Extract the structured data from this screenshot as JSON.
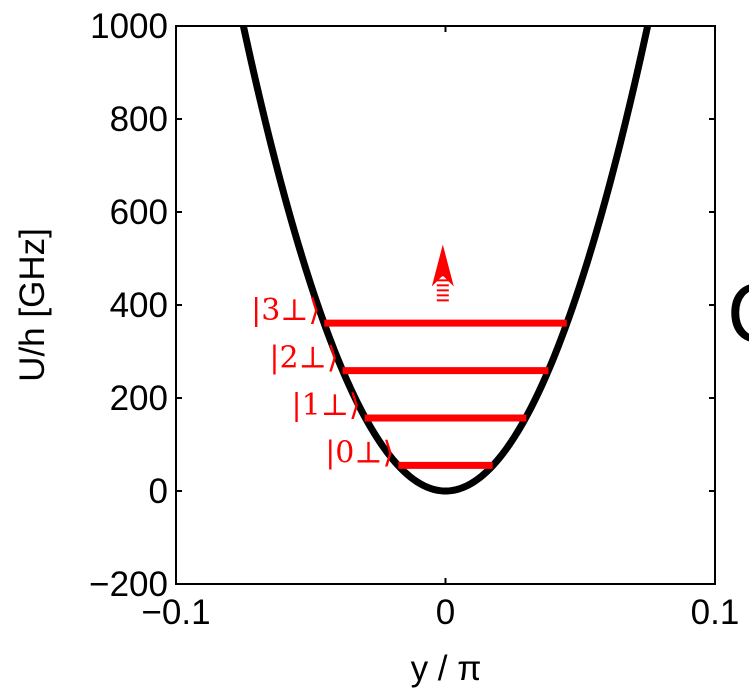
{
  "chart_data": {
    "type": "line",
    "xlabel": "y / π",
    "ylabel": "U/h [GHz]",
    "xlim": [
      -0.1,
      0.1
    ],
    "ylim": [
      -200,
      1000
    ],
    "x_ticks": [
      {
        "value": -0.1,
        "label": "−0.1"
      },
      {
        "value": 0,
        "label": "0"
      },
      {
        "value": 0.1,
        "label": "0.1"
      }
    ],
    "y_ticks": [
      {
        "value": -200,
        "label": "−200"
      },
      {
        "value": 0,
        "label": "0"
      },
      {
        "value": 200,
        "label": "200"
      },
      {
        "value": 400,
        "label": "400"
      },
      {
        "value": 600,
        "label": "600"
      },
      {
        "value": 800,
        "label": "800"
      },
      {
        "value": 1000,
        "label": "1000"
      }
    ],
    "series": [
      {
        "kind": "parabola",
        "color": "#000000",
        "equation": "U/h = 178000 * (y/pi)^2",
        "x": [
          -0.075,
          -0.06,
          -0.045,
          -0.03,
          -0.015,
          0,
          0.015,
          0.03,
          0.045,
          0.06,
          0.075
        ],
        "y": [
          1000,
          640,
          360,
          160,
          40,
          0,
          40,
          160,
          360,
          640,
          1000
        ]
      }
    ],
    "energy_levels": [
      {
        "label": "|0⊥⟩",
        "energy": 55,
        "x_range": [
          -0.0175,
          0.0175
        ]
      },
      {
        "label": "|1⊥⟩",
        "energy": 157,
        "x_range": [
          -0.03,
          0.03
        ]
      },
      {
        "label": "|2⊥⟩",
        "energy": 259,
        "x_range": [
          -0.0382,
          0.0382
        ]
      },
      {
        "label": "|3⊥⟩",
        "energy": 361,
        "x_range": [
          -0.045,
          0.045
        ]
      }
    ],
    "levels_color": "#ff0000",
    "arrow": {
      "x": -0.001,
      "from": 410,
      "to": 530,
      "color": "#ff0000"
    },
    "grid": false,
    "legend": "none"
  },
  "partial_text": "C"
}
